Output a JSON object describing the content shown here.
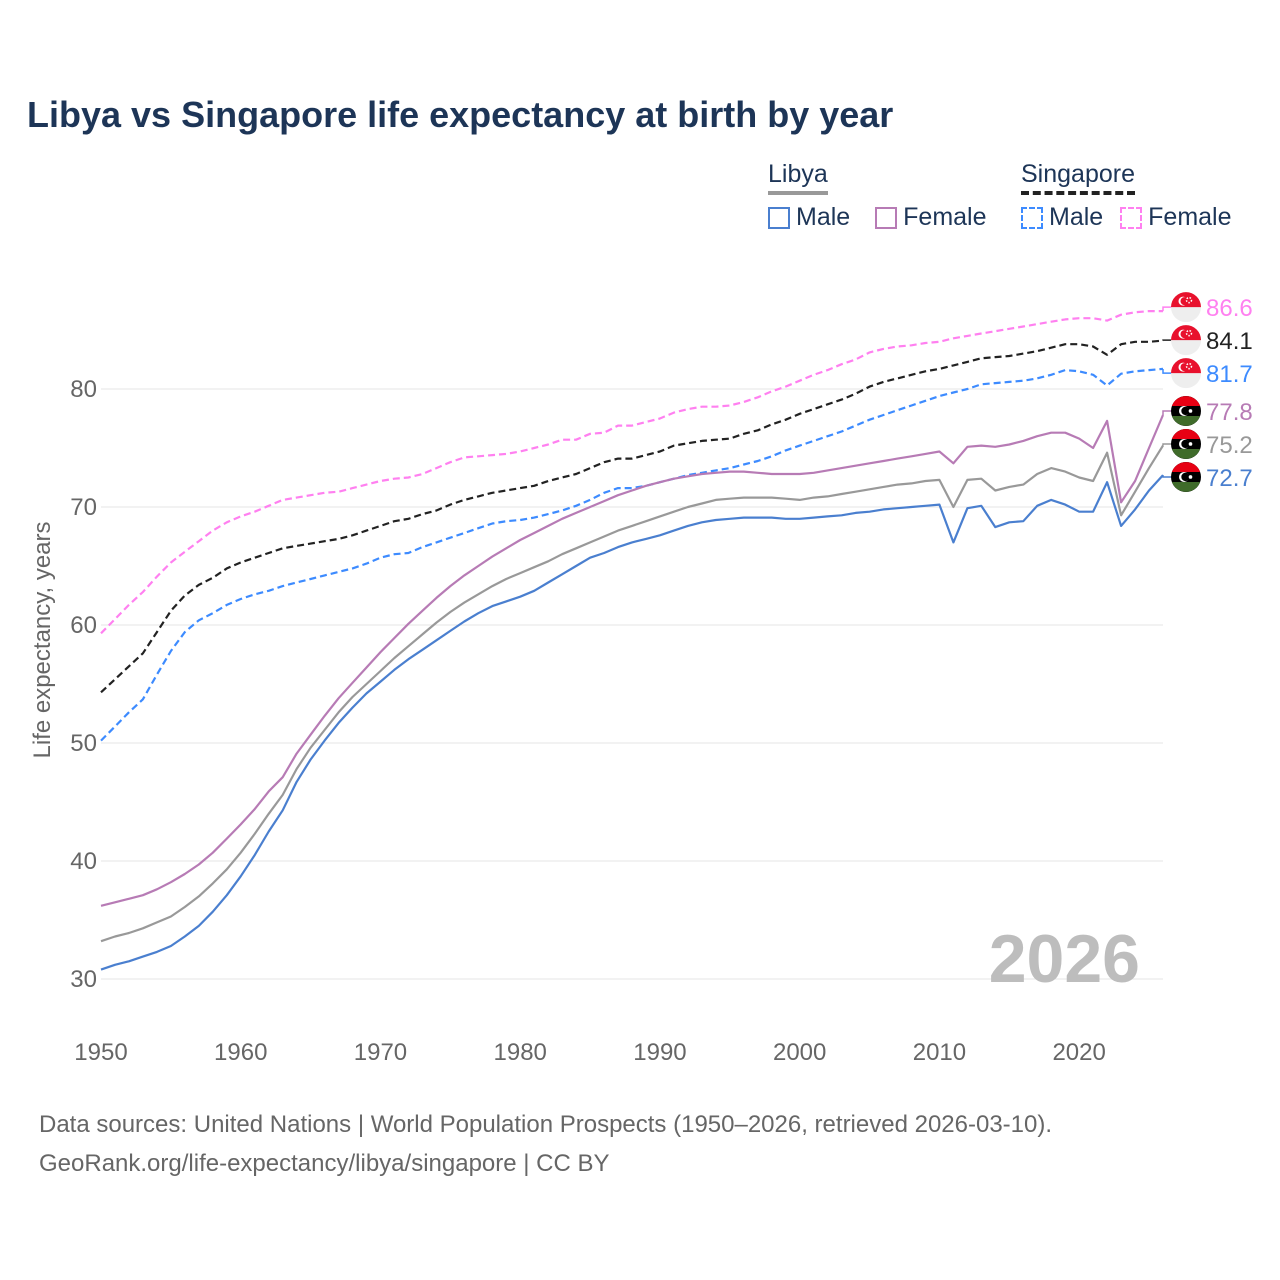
{
  "chart_data": {
    "type": "line",
    "title": "Libya vs Singapore life expectancy at birth by year",
    "xlabel": "",
    "ylabel": "Life expectancy, years",
    "xlim": [
      1950,
      2026
    ],
    "ylim": [
      28,
      90
    ],
    "x_ticks": [
      1950,
      1960,
      1970,
      1980,
      1990,
      2000,
      2010,
      2020
    ],
    "y_ticks": [
      30,
      40,
      50,
      60,
      70,
      80
    ],
    "grid": true,
    "year_watermark": "2026",
    "legend": {
      "placement": "top-right",
      "groups": [
        {
          "country": "Libya",
          "items": [
            "Male",
            "Female"
          ]
        },
        {
          "country": "Singapore",
          "items": [
            "Male",
            "Female"
          ]
        }
      ]
    },
    "x_start": 1950,
    "series": [
      {
        "name": "Singapore Female",
        "country": "Singapore",
        "color": "#ff80f0",
        "dashed": true,
        "end_label": "86.6",
        "values": [
          59.3,
          60.5,
          61.7,
          62.8,
          64.1,
          65.3,
          66.2,
          67.1,
          68.0,
          68.7,
          69.2,
          69.6,
          70.1,
          70.6,
          70.8,
          71.0,
          71.2,
          71.3,
          71.6,
          71.9,
          72.2,
          72.4,
          72.5,
          72.8,
          73.3,
          73.8,
          74.2,
          74.3,
          74.4,
          74.5,
          74.7,
          75.0,
          75.3,
          75.7,
          75.7,
          76.2,
          76.3,
          76.9,
          76.9,
          77.2,
          77.5,
          78.0,
          78.3,
          78.5,
          78.5,
          78.6,
          78.9,
          79.3,
          79.8,
          80.2,
          80.7,
          81.2,
          81.6,
          82.1,
          82.5,
          83.1,
          83.4,
          83.6,
          83.7,
          83.9,
          84.0,
          84.3,
          84.5,
          84.7,
          84.9,
          85.1,
          85.3,
          85.5,
          85.7,
          85.9,
          86.0,
          86.0,
          85.8,
          86.3,
          86.5,
          86.6,
          86.6
        ]
      },
      {
        "name": "Singapore",
        "country": "Singapore",
        "color": "#222222",
        "dashed": true,
        "end_label": "84.1",
        "values": [
          54.3,
          55.4,
          56.5,
          57.6,
          59.4,
          61.2,
          62.5,
          63.4,
          64.0,
          64.8,
          65.3,
          65.7,
          66.1,
          66.5,
          66.7,
          66.9,
          67.1,
          67.3,
          67.6,
          68.0,
          68.4,
          68.8,
          69.0,
          69.4,
          69.7,
          70.2,
          70.6,
          70.9,
          71.2,
          71.4,
          71.6,
          71.8,
          72.2,
          72.5,
          72.8,
          73.3,
          73.8,
          74.1,
          74.1,
          74.4,
          74.7,
          75.2,
          75.4,
          75.6,
          75.7,
          75.8,
          76.2,
          76.5,
          77.0,
          77.4,
          77.9,
          78.3,
          78.7,
          79.1,
          79.6,
          80.2,
          80.6,
          80.9,
          81.2,
          81.5,
          81.7,
          82.0,
          82.3,
          82.6,
          82.7,
          82.8,
          83.0,
          83.2,
          83.5,
          83.8,
          83.8,
          83.6,
          82.9,
          83.8,
          84.0,
          84.0,
          84.1
        ]
      },
      {
        "name": "Singapore Male",
        "country": "Singapore",
        "color": "#3d8bff",
        "dashed": true,
        "end_label": "81.7",
        "values": [
          50.2,
          51.4,
          52.6,
          53.7,
          55.8,
          57.8,
          59.4,
          60.4,
          61.0,
          61.7,
          62.2,
          62.6,
          62.9,
          63.3,
          63.6,
          63.9,
          64.2,
          64.5,
          64.8,
          65.2,
          65.7,
          66.0,
          66.1,
          66.6,
          67.0,
          67.4,
          67.8,
          68.2,
          68.6,
          68.8,
          68.9,
          69.1,
          69.4,
          69.7,
          70.1,
          70.6,
          71.2,
          71.6,
          71.6,
          71.8,
          72.1,
          72.4,
          72.7,
          72.9,
          73.1,
          73.3,
          73.6,
          73.9,
          74.3,
          74.8,
          75.2,
          75.6,
          76.0,
          76.4,
          76.9,
          77.4,
          77.8,
          78.2,
          78.6,
          79.0,
          79.4,
          79.7,
          80.0,
          80.4,
          80.5,
          80.6,
          80.7,
          80.9,
          81.2,
          81.6,
          81.5,
          81.2,
          80.3,
          81.3,
          81.5,
          81.6,
          81.7
        ]
      },
      {
        "name": "Libya Female",
        "country": "Libya",
        "color": "#b77bb5",
        "dashed": false,
        "end_label": "77.8",
        "values": [
          36.2,
          36.5,
          36.8,
          37.1,
          37.6,
          38.2,
          38.9,
          39.7,
          40.7,
          41.9,
          43.1,
          44.4,
          45.9,
          47.1,
          49.1,
          50.7,
          52.3,
          53.8,
          55.1,
          56.4,
          57.7,
          58.9,
          60.1,
          61.2,
          62.3,
          63.3,
          64.2,
          65.0,
          65.8,
          66.5,
          67.2,
          67.8,
          68.4,
          69.0,
          69.5,
          70.0,
          70.5,
          71.0,
          71.4,
          71.8,
          72.1,
          72.4,
          72.6,
          72.8,
          72.9,
          73.0,
          73.0,
          72.9,
          72.8,
          72.8,
          72.8,
          72.9,
          73.1,
          73.3,
          73.5,
          73.7,
          73.9,
          74.1,
          74.3,
          74.5,
          74.7,
          73.7,
          75.1,
          75.2,
          75.1,
          75.3,
          75.6,
          76.0,
          76.3,
          76.3,
          75.8,
          75.0,
          77.3,
          70.4,
          72.2,
          75.0,
          77.8
        ]
      },
      {
        "name": "Libya",
        "country": "Libya",
        "color": "#999999",
        "dashed": false,
        "end_label": "75.2",
        "values": [
          33.2,
          33.6,
          33.9,
          34.3,
          34.8,
          35.3,
          36.1,
          37.0,
          38.1,
          39.3,
          40.7,
          42.3,
          44.0,
          45.6,
          47.8,
          49.6,
          51.1,
          52.6,
          53.9,
          55.0,
          56.1,
          57.2,
          58.2,
          59.2,
          60.2,
          61.1,
          61.9,
          62.6,
          63.3,
          63.9,
          64.4,
          64.9,
          65.4,
          66.0,
          66.5,
          67.0,
          67.5,
          68.0,
          68.4,
          68.8,
          69.2,
          69.6,
          70.0,
          70.3,
          70.6,
          70.7,
          70.8,
          70.8,
          70.8,
          70.7,
          70.6,
          70.8,
          70.9,
          71.1,
          71.3,
          71.5,
          71.7,
          71.9,
          72.0,
          72.2,
          72.3,
          70.0,
          72.3,
          72.4,
          71.4,
          71.7,
          71.9,
          72.8,
          73.3,
          73.0,
          72.5,
          72.2,
          74.6,
          69.3,
          71.3,
          73.3,
          75.2
        ]
      },
      {
        "name": "Libya Male",
        "country": "Libya",
        "color": "#4a7fcf",
        "dashed": false,
        "end_label": "72.7",
        "values": [
          30.8,
          31.2,
          31.5,
          31.9,
          32.3,
          32.8,
          33.6,
          34.5,
          35.7,
          37.1,
          38.7,
          40.5,
          42.5,
          44.3,
          46.7,
          48.6,
          50.2,
          51.7,
          53.0,
          54.2,
          55.2,
          56.2,
          57.1,
          57.9,
          58.7,
          59.5,
          60.3,
          61.0,
          61.6,
          62.0,
          62.4,
          62.9,
          63.6,
          64.3,
          65.0,
          65.7,
          66.1,
          66.6,
          67.0,
          67.3,
          67.6,
          68.0,
          68.4,
          68.7,
          68.9,
          69.0,
          69.1,
          69.1,
          69.1,
          69.0,
          69.0,
          69.1,
          69.2,
          69.3,
          69.5,
          69.6,
          69.8,
          69.9,
          70.0,
          70.1,
          70.2,
          67.0,
          69.9,
          70.1,
          68.3,
          68.7,
          68.8,
          70.1,
          70.6,
          70.2,
          69.6,
          69.6,
          72.1,
          68.4,
          69.8,
          71.4,
          72.7
        ]
      }
    ]
  },
  "legend": {
    "libya": {
      "label": "Libya",
      "male": "Male",
      "female": "Female"
    },
    "singapore": {
      "label": "Singapore",
      "male": "Male",
      "female": "Female"
    }
  },
  "footer": {
    "line1": "Data sources: United Nations | World Population Prospects (1950–2026, retrieved 2026-03-10).",
    "line2": "GeoRank.org/life-expectancy/libya/singapore | CC BY"
  },
  "colors": {
    "title": "#1d3557",
    "grid": "#e6e6e6",
    "tick": "#666666"
  }
}
